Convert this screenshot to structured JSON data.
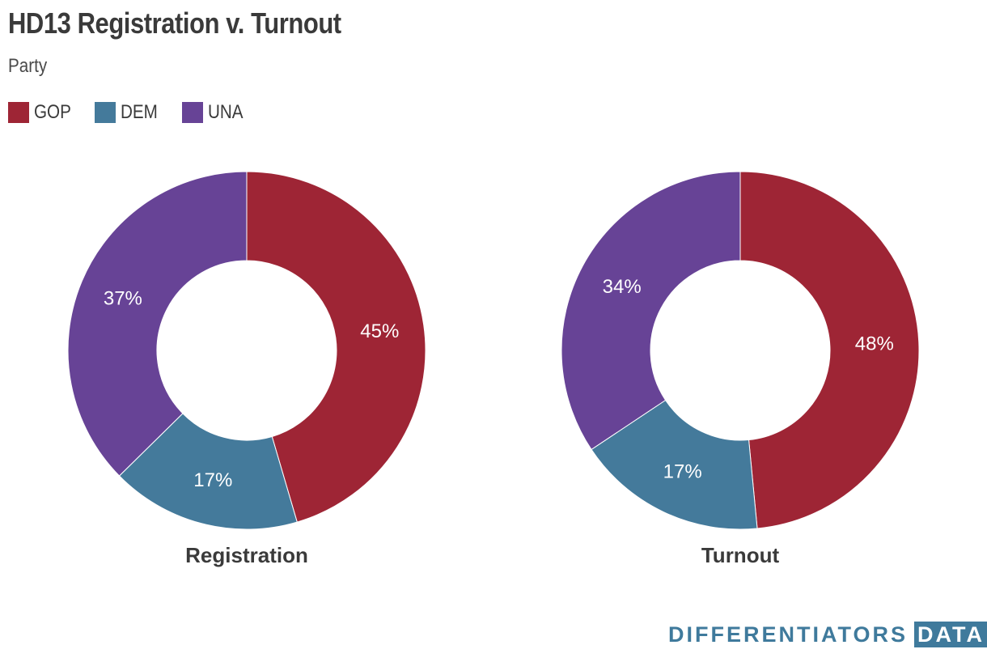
{
  "title": "HD13 Registration v. Turnout",
  "subtitle": "Party",
  "legend": [
    {
      "label": "GOP",
      "color": "#9e2535"
    },
    {
      "label": "DEM",
      "color": "#447a9b"
    },
    {
      "label": "UNA",
      "color": "#674396"
    }
  ],
  "logo": {
    "text": "DIFFERENTIATORS",
    "box": "DATA"
  },
  "chart_data": [
    {
      "type": "pie",
      "title": "Registration",
      "labels": [
        "GOP",
        "DEM",
        "UNA"
      ],
      "values": [
        45,
        17,
        37
      ],
      "value_labels": [
        "45%",
        "17%",
        "37%"
      ],
      "colors": [
        "#9e2535",
        "#447a9b",
        "#674396"
      ]
    },
    {
      "type": "pie",
      "title": "Turnout",
      "labels": [
        "GOP",
        "DEM",
        "UNA"
      ],
      "values": [
        48,
        17,
        34
      ],
      "value_labels": [
        "48%",
        "17%",
        "34%"
      ],
      "colors": [
        "#9e2535",
        "#447a9b",
        "#674396"
      ]
    }
  ]
}
